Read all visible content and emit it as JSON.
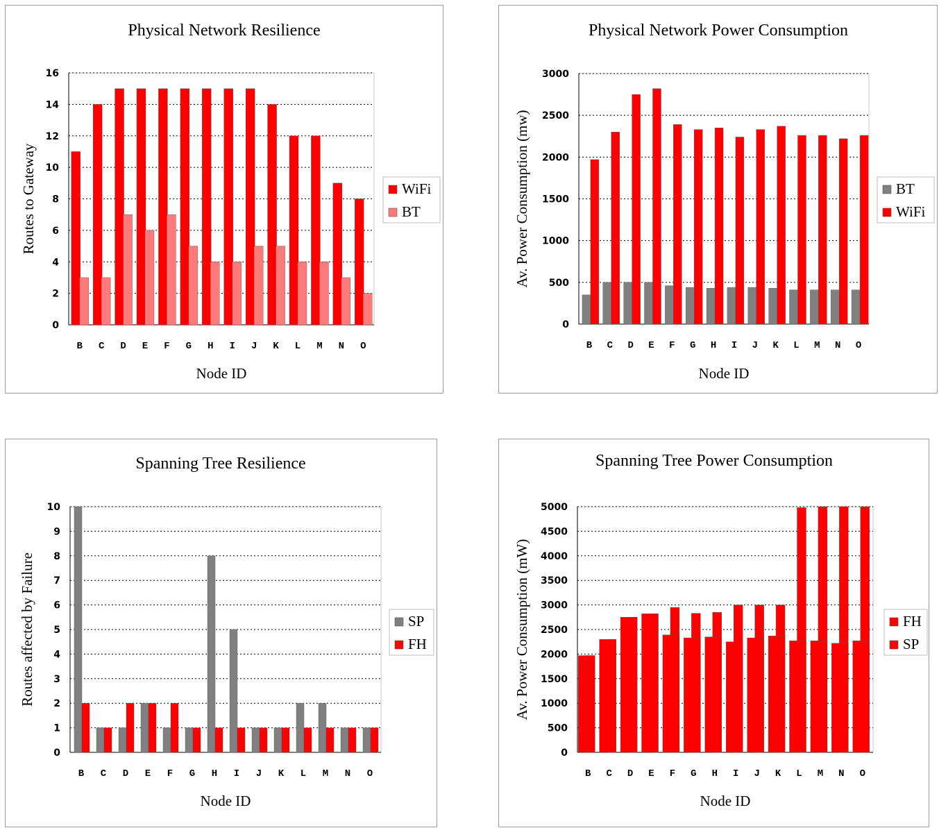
{
  "chart_data": [
    {
      "type": "bar",
      "title": "Physical Network Resilience",
      "xlabel": "Node ID",
      "ylabel": "Routes to Gateway",
      "categories": [
        "B",
        "C",
        "D",
        "E",
        "F",
        "G",
        "H",
        "I",
        "J",
        "K",
        "L",
        "M",
        "N",
        "O"
      ],
      "ylim": [
        0,
        16
      ],
      "yticks": [
        0,
        2,
        4,
        6,
        8,
        10,
        12,
        14,
        16
      ],
      "grid": true,
      "legend_position": "right",
      "legend_order": [
        "WiFi",
        "BT"
      ],
      "series": [
        {
          "name": "WiFi",
          "color": "#ff0000",
          "values": [
            11,
            14,
            15,
            15,
            15,
            15,
            15,
            15,
            15,
            14,
            12,
            12,
            9,
            8
          ]
        },
        {
          "name": "BT",
          "color": "#ff7b7b",
          "values": [
            3,
            3,
            7,
            6,
            7,
            5,
            4,
            4,
            5,
            5,
            4,
            4,
            3,
            2
          ]
        }
      ]
    },
    {
      "type": "bar",
      "title": "Physical Network Power Consumption",
      "xlabel": "Node ID",
      "ylabel": "Av. Power Consumption (mw)",
      "categories": [
        "B",
        "C",
        "D",
        "E",
        "F",
        "G",
        "H",
        "I",
        "J",
        "K",
        "L",
        "M",
        "N",
        "O"
      ],
      "ylim": [
        0,
        3000
      ],
      "yticks": [
        0,
        500,
        1000,
        1500,
        2000,
        2500,
        3000
      ],
      "grid": true,
      "legend_position": "right",
      "legend_order": [
        "BT",
        "WiFi"
      ],
      "series": [
        {
          "name": "BT",
          "color": "#808080",
          "values": [
            350,
            500,
            500,
            500,
            460,
            440,
            430,
            440,
            440,
            430,
            410,
            410,
            410,
            410
          ]
        },
        {
          "name": "WiFi",
          "color": "#ff0000",
          "values": [
            1970,
            2300,
            2750,
            2820,
            2390,
            2330,
            2350,
            2240,
            2330,
            2370,
            2260,
            2260,
            2220,
            2260
          ]
        }
      ]
    },
    {
      "type": "bar",
      "title": "Spanning Tree Resilience",
      "xlabel": "Node ID",
      "ylabel": "Routes affected by Failure",
      "categories": [
        "B",
        "C",
        "D",
        "E",
        "F",
        "G",
        "H",
        "I",
        "J",
        "K",
        "L",
        "M",
        "N",
        "O"
      ],
      "ylim": [
        0,
        10
      ],
      "yticks": [
        0,
        1,
        2,
        3,
        4,
        5,
        6,
        7,
        8,
        9,
        10
      ],
      "grid": true,
      "legend_position": "right",
      "legend_order": [
        "SP",
        "FH"
      ],
      "series": [
        {
          "name": "SP",
          "color": "#808080",
          "values": [
            10,
            1,
            1,
            2,
            1,
            1,
            8,
            5,
            1,
            1,
            2,
            2,
            1,
            1
          ]
        },
        {
          "name": "FH",
          "color": "#ff0000",
          "values": [
            2,
            1,
            2,
            2,
            2,
            1,
            1,
            1,
            1,
            1,
            1,
            1,
            1,
            1
          ]
        }
      ]
    },
    {
      "type": "bar",
      "title": "Spanning Tree Power Consumption",
      "xlabel": "Node ID",
      "ylabel": "Av. Power Consumption (mW)",
      "categories": [
        "B",
        "C",
        "D",
        "E",
        "F",
        "G",
        "H",
        "I",
        "J",
        "K",
        "L",
        "M",
        "N",
        "O"
      ],
      "ylim": [
        0,
        5000
      ],
      "yticks": [
        0,
        500,
        1000,
        1500,
        2000,
        2500,
        3000,
        3500,
        4000,
        4500,
        5000
      ],
      "grid": true,
      "legend_position": "right",
      "legend_order": [
        "FH",
        "SP"
      ],
      "series": [
        {
          "name": "SP",
          "color": "#ff0000",
          "values": [
            1970,
            2300,
            2750,
            2820,
            2950,
            2830,
            2850,
            3000,
            3000,
            3000,
            4980,
            5000,
            5000,
            5000
          ]
        },
        {
          "name": "FH",
          "color": "#ff0000",
          "values": [
            1970,
            2300,
            2750,
            2820,
            2390,
            2330,
            2350,
            2250,
            2330,
            2370,
            2270,
            2270,
            2220,
            2270
          ]
        }
      ]
    }
  ]
}
